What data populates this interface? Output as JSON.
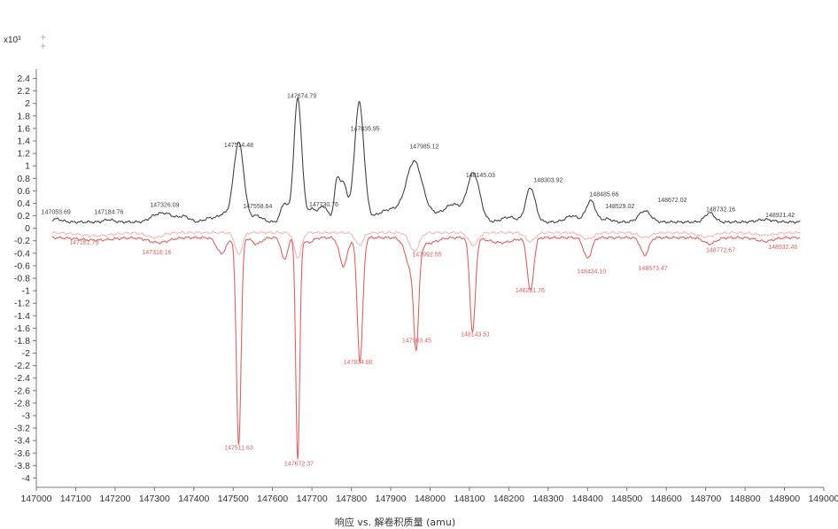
{
  "chart_data": {
    "type": "line",
    "xlabel": "响应 vs. 解卷积质量 (amu)",
    "y_exponent_label": "x10³",
    "xlim": [
      147000,
      149000
    ],
    "ylim": [
      -4.15,
      2.55
    ],
    "x_ticks": [
      147000,
      147100,
      147200,
      147300,
      147400,
      147500,
      147600,
      147700,
      147800,
      147900,
      148000,
      148100,
      148200,
      148300,
      148400,
      148500,
      148600,
      148700,
      148800,
      148900,
      149000
    ],
    "y_ticks": [
      2.4,
      2.2,
      2,
      1.8,
      1.6,
      1.4,
      1.2,
      1,
      0.8,
      0.6,
      0.4,
      0.2,
      0,
      -0.2,
      -0.4,
      -0.6,
      -0.8,
      -1,
      -1.2,
      -1.4,
      -1.6,
      -1.8,
      -2,
      -2.2,
      -2.4,
      -2.6,
      -2.8,
      -3,
      -3.2,
      -3.4,
      -3.6,
      -3.8,
      -4
    ],
    "series": [
      {
        "color": "#444444",
        "baseline": 0.1,
        "x_range": [
          147040,
          148940
        ],
        "peaks": [
          [
            147050,
            0.05,
            14
          ],
          [
            147184,
            0.04,
            12
          ],
          [
            147300,
            0.08,
            15
          ],
          [
            147330,
            0.13,
            18
          ],
          [
            147375,
            0.09,
            14
          ],
          [
            147440,
            0.06,
            14
          ],
          [
            147475,
            0.12,
            14
          ],
          [
            147514,
            1.28,
            13
          ],
          [
            147560,
            0.1,
            14
          ],
          [
            147630,
            0.3,
            9
          ],
          [
            147664,
            1.98,
            10
          ],
          [
            147700,
            0.2,
            13
          ],
          [
            147730,
            0.24,
            11
          ],
          [
            147763,
            0.55,
            7
          ],
          [
            147780,
            0.6,
            10
          ],
          [
            147820,
            1.9,
            12
          ],
          [
            147900,
            0.2,
            35
          ],
          [
            147960,
            0.9,
            20
          ],
          [
            148010,
            0.12,
            30
          ],
          [
            148060,
            0.25,
            20
          ],
          [
            148110,
            0.78,
            16
          ],
          [
            148200,
            0.08,
            18
          ],
          [
            148255,
            0.55,
            12
          ],
          [
            148360,
            0.1,
            16
          ],
          [
            148408,
            0.34,
            12
          ],
          [
            148450,
            0.05,
            12
          ],
          [
            148545,
            0.18,
            15
          ],
          [
            148710,
            0.15,
            12
          ],
          [
            148850,
            0.04,
            20
          ]
        ]
      },
      {
        "color": "#f2b8b8",
        "baseline": -0.07,
        "x_range": [
          147040,
          148940
        ],
        "peaks": [
          [
            147150,
            -0.05,
            40
          ],
          [
            147300,
            -0.08,
            20
          ],
          [
            147514,
            -0.35,
            9
          ],
          [
            147664,
            -0.4,
            9
          ],
          [
            147820,
            -0.2,
            10
          ],
          [
            147960,
            -0.3,
            12
          ],
          [
            148110,
            -0.2,
            12
          ],
          [
            148255,
            -0.14,
            12
          ],
          [
            148400,
            -0.1,
            15
          ],
          [
            148545,
            -0.08,
            15
          ],
          [
            148700,
            -0.07,
            20
          ],
          [
            148850,
            -0.04,
            25
          ]
        ]
      },
      {
        "color": "#e06262",
        "baseline": -0.15,
        "x_range": [
          147040,
          148940
        ],
        "peaks": [
          [
            147150,
            -0.04,
            40
          ],
          [
            147310,
            -0.08,
            25
          ],
          [
            147470,
            -0.25,
            12
          ],
          [
            147514,
            -3.3,
            6
          ],
          [
            147560,
            -0.1,
            12
          ],
          [
            147630,
            -0.35,
            8
          ],
          [
            147664,
            -3.55,
            5
          ],
          [
            147690,
            -0.08,
            12
          ],
          [
            147780,
            -0.45,
            10
          ],
          [
            147822,
            -1.98,
            7
          ],
          [
            147955,
            -0.55,
            15
          ],
          [
            147965,
            -1.35,
            6
          ],
          [
            148000,
            -0.08,
            20
          ],
          [
            148108,
            -1.5,
            7
          ],
          [
            148180,
            -0.08,
            30
          ],
          [
            148255,
            -0.85,
            8
          ],
          [
            148400,
            -0.33,
            10
          ],
          [
            148545,
            -0.28,
            10
          ],
          [
            148710,
            -0.1,
            15
          ],
          [
            148850,
            -0.06,
            20
          ]
        ]
      }
    ],
    "peak_labels": [
      {
        "text": "147053.69",
        "x": 147050,
        "y": 0.23,
        "color": "#444444"
      },
      {
        "text": "147184.76",
        "x": 147184,
        "y": 0.23,
        "color": "#444444"
      },
      {
        "text": "147326.09",
        "x": 147326,
        "y": 0.34,
        "color": "#444444"
      },
      {
        "text": "147514.48",
        "x": 147514,
        "y": 1.3,
        "color": "#444444"
      },
      {
        "text": "147558.64",
        "x": 147562,
        "y": 0.32,
        "color": "#444444"
      },
      {
        "text": "147674.79",
        "x": 147674,
        "y": 2.09,
        "color": "#444444"
      },
      {
        "text": "147730.76",
        "x": 147730,
        "y": 0.35,
        "color": "#444444"
      },
      {
        "text": "147835.95",
        "x": 147835,
        "y": 1.56,
        "color": "#444444"
      },
      {
        "text": "147985.12",
        "x": 147985,
        "y": 1.28,
        "color": "#444444"
      },
      {
        "text": "148145.03",
        "x": 148128,
        "y": 0.82,
        "color": "#444444"
      },
      {
        "text": "148303.92",
        "x": 148300,
        "y": 0.74,
        "color": "#444444"
      },
      {
        "text": "148485.66",
        "x": 148442,
        "y": 0.51,
        "color": "#444444"
      },
      {
        "text": "148529.02",
        "x": 148482,
        "y": 0.32,
        "color": "#444444"
      },
      {
        "text": "148672.02",
        "x": 148615,
        "y": 0.42,
        "color": "#444444"
      },
      {
        "text": "148732.16",
        "x": 148738,
        "y": 0.27,
        "color": "#444444"
      },
      {
        "text": "148921.42",
        "x": 148889,
        "y": 0.18,
        "color": "#444444"
      },
      {
        "text": "147161.73",
        "x": 147121,
        "y": -0.26,
        "color": "#e06262"
      },
      {
        "text": "147318.16",
        "x": 147306,
        "y": -0.42,
        "color": "#e06262"
      },
      {
        "text": "147511.63",
        "x": 147514,
        "y": -3.55,
        "color": "#e06262"
      },
      {
        "text": "147672.37",
        "x": 147667,
        "y": -3.8,
        "color": "#e06262"
      },
      {
        "text": "147834.80",
        "x": 147817,
        "y": -2.18,
        "color": "#e06262"
      },
      {
        "text": "147992.55",
        "x": 147992,
        "y": -0.45,
        "color": "#e06262"
      },
      {
        "text": "147983.45",
        "x": 147966,
        "y": -1.83,
        "color": "#e06262"
      },
      {
        "text": "148143.51",
        "x": 148115,
        "y": -1.73,
        "color": "#e06262"
      },
      {
        "text": "148281.76",
        "x": 148254,
        "y": -1.03,
        "color": "#e06262"
      },
      {
        "text": "148434.10",
        "x": 148410,
        "y": -0.72,
        "color": "#e06262"
      },
      {
        "text": "148573.47",
        "x": 148566,
        "y": -0.67,
        "color": "#e06262"
      },
      {
        "text": "148772.67",
        "x": 148738,
        "y": -0.38,
        "color": "#e06262"
      },
      {
        "text": "148932.46",
        "x": 148896,
        "y": -0.33,
        "color": "#e06262"
      }
    ]
  }
}
